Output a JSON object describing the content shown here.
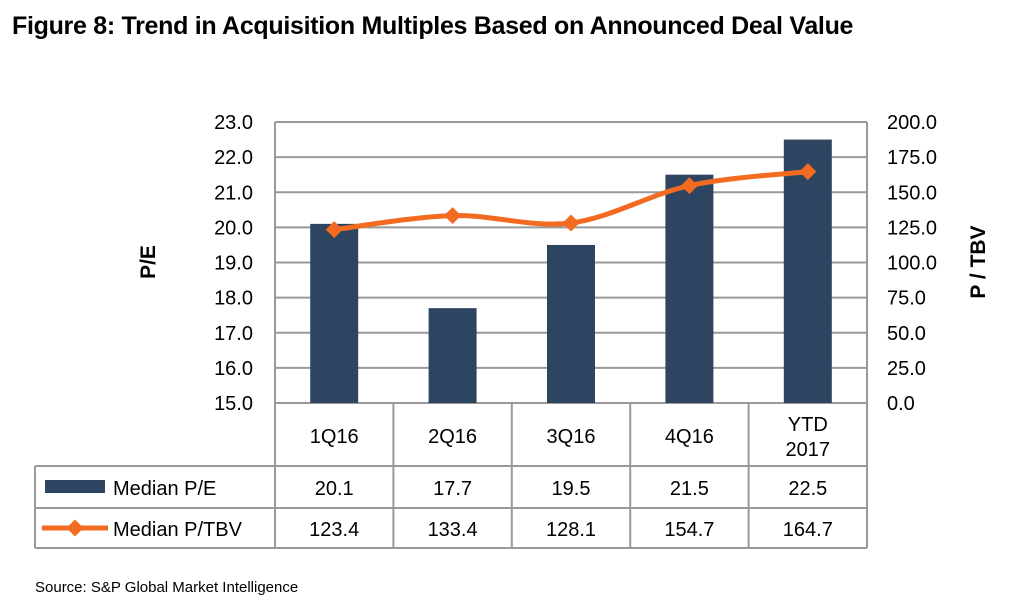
{
  "chart_data": {
    "type": "bar",
    "title": "Figure 8: Trend in Acquisition Multiples Based on Announced Deal Value",
    "source": "Source: S&P Global Market Intelligence",
    "categories": [
      [
        "1Q16"
      ],
      [
        "2Q16"
      ],
      [
        "3Q16"
      ],
      [
        "4Q16"
      ],
      [
        "YTD",
        "2017"
      ]
    ],
    "ylabel_left": "P/E",
    "ylabel_right": "P / TBV",
    "ylim_left": [
      15,
      23
    ],
    "ylim_right": [
      0,
      200
    ],
    "yticks_left": [
      "15.0",
      "16.0",
      "17.0",
      "18.0",
      "19.0",
      "20.0",
      "21.0",
      "22.0",
      "23.0"
    ],
    "yticks_right": [
      "0.0",
      "25.0",
      "50.0",
      "75.0",
      "100.0",
      "125.0",
      "150.0",
      "175.0",
      "200.0"
    ],
    "grid": true,
    "series": [
      {
        "name": "Median P/E",
        "type": "bar",
        "axis": "left",
        "color": "#2e4561",
        "values": [
          20.1,
          17.7,
          19.5,
          21.5,
          22.5
        ],
        "labels": [
          "20.1",
          "17.7",
          "19.5",
          "21.5",
          "22.5"
        ]
      },
      {
        "name": "Median P/TBV",
        "type": "line",
        "axis": "right",
        "color": "#f26b21",
        "values": [
          123.4,
          133.4,
          128.1,
          154.7,
          164.7
        ],
        "labels": [
          "123.4",
          "133.4",
          "128.1",
          "154.7",
          "164.7"
        ]
      }
    ],
    "legend": "data-table-below"
  }
}
